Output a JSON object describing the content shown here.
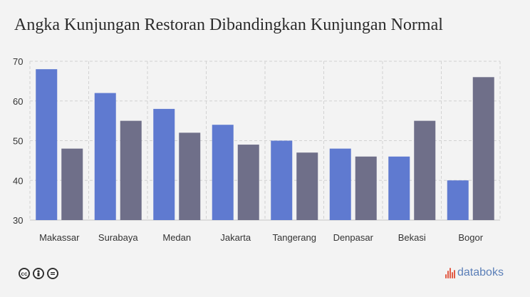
{
  "title": "Angka Kunjungan Restoran Dibandingkan Kunjungan Normal",
  "footer": {
    "icons": [
      "creative-commons-icon",
      "attribution-person-icon",
      "no-derivatives-icon"
    ],
    "cc_label": "cc",
    "brand": "databoks",
    "brand_color": "#e25b45"
  },
  "chart_data": {
    "type": "bar",
    "title": "Angka Kunjungan Restoran Dibandingkan Kunjungan Normal",
    "xlabel": "",
    "ylabel": "",
    "categories": [
      "Makassar",
      "Surabaya",
      "Medan",
      "Jakarta",
      "Tangerang",
      "Denpasar",
      "Bekasi",
      "Bogor"
    ],
    "series": [
      {
        "values": [
          68,
          62,
          58,
          54,
          50,
          48,
          46,
          40
        ],
        "color": "#5f7ad0"
      },
      {
        "values": [
          48,
          55,
          52,
          49,
          47,
          46,
          55,
          66
        ],
        "color": "#6f6f89"
      }
    ],
    "ylim": [
      30,
      70
    ],
    "yticks": [
      30,
      40,
      50,
      60,
      70
    ],
    "grid": true
  }
}
